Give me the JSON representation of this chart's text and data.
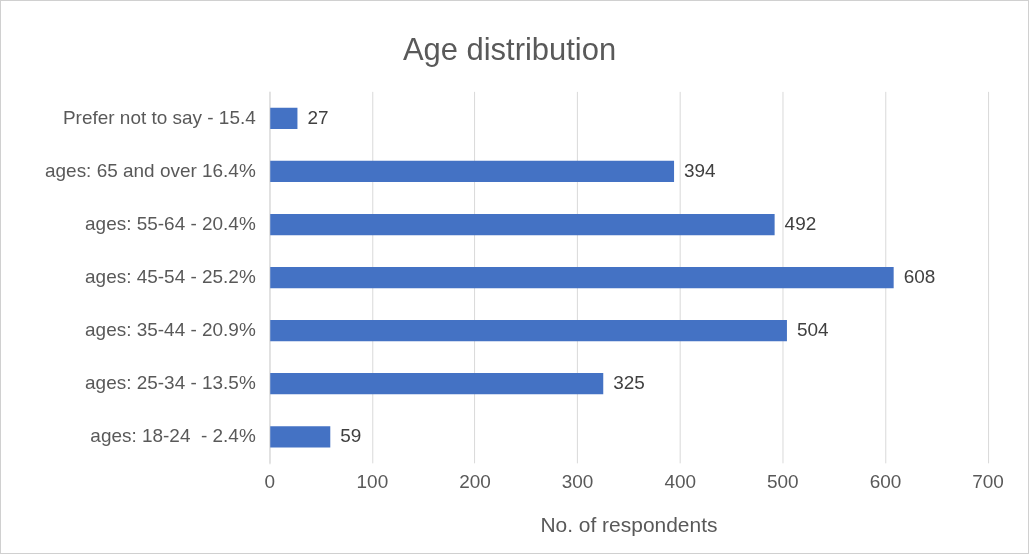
{
  "chart_data": {
    "type": "bar",
    "orientation": "horizontal",
    "title": "Age distribution",
    "xlabel": "No. of respondents",
    "categories": [
      "Prefer not to say - 15.4",
      "ages: 65 and over 16.4%",
      "ages: 55-64 - 20.4%",
      "ages: 45-54 - 25.2%",
      "ages: 35-44 - 20.9%",
      "ages: 25-34 - 13.5%",
      "ages: 18-24  - 2.4%"
    ],
    "values": [
      27,
      394,
      492,
      608,
      504,
      325,
      59
    ],
    "color": "#4472c4",
    "xlim": [
      0,
      700
    ],
    "xticks": [
      0,
      100,
      200,
      300,
      400,
      500,
      600,
      700
    ],
    "grid": "x",
    "legend": false,
    "data_labels": true
  }
}
